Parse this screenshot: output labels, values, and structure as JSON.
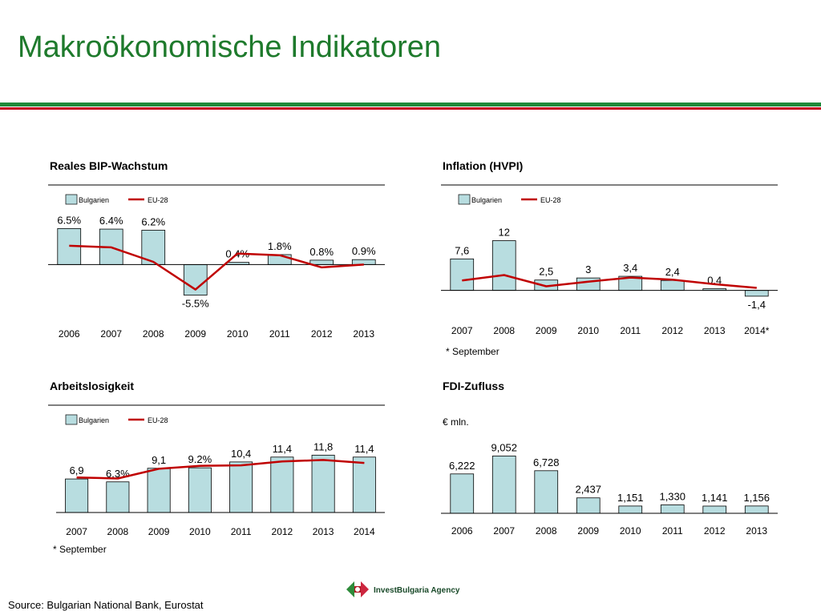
{
  "page": {
    "title": "Makroökonomische Indikatoren",
    "source": "Source: Bulgarian National Bank,  Eurostat",
    "logo_text": "InvestBulgaria Agency"
  },
  "colors": {
    "title": "#1e7a2c",
    "bar_fill": "#b8dde0",
    "line": "#c00000",
    "stripe_green": "#1e8a3a",
    "stripe_red": "#c4001d"
  },
  "chart_data": [
    {
      "type": "bar",
      "title": "Reales BIP-Wachstum",
      "categories": [
        "2006",
        "2007",
        "2008",
        "2009",
        "2010",
        "2011",
        "2012",
        "2013"
      ],
      "series": [
        {
          "name": "Bulgarien",
          "type": "bar",
          "values": [
            6.5,
            6.4,
            6.2,
            -5.5,
            0.4,
            1.8,
            0.8,
            0.9
          ]
        },
        {
          "name": "EU-28",
          "type": "line",
          "values": [
            3.4,
            3.1,
            0.5,
            -4.5,
            2.0,
            1.7,
            -0.5,
            0.0
          ]
        }
      ],
      "value_labels": [
        "6.5%",
        "6.4%",
        "6.2%",
        "-5.5%",
        "0.4%",
        "1.8%",
        "0.8%",
        "0.9%"
      ],
      "note": "",
      "unit_label": "",
      "ylim": [
        -6,
        8
      ],
      "legend": "top-left"
    },
    {
      "type": "bar",
      "title": "Inflation (HVPI)",
      "categories": [
        "2007",
        "2008",
        "2009",
        "2010",
        "2011",
        "2012",
        "2013",
        "2014*"
      ],
      "series": [
        {
          "name": "Bulgarien",
          "type": "bar",
          "values": [
            7.6,
            12,
            2.5,
            3,
            3.4,
            2.4,
            0.4,
            -1.4
          ]
        },
        {
          "name": "EU-28",
          "type": "line",
          "values": [
            2.4,
            3.7,
            1.0,
            2.1,
            3.1,
            2.6,
            1.5,
            0.6
          ]
        }
      ],
      "value_labels": [
        "7,6",
        "12",
        "2,5",
        "3",
        "3,4",
        "2,4",
        "0.4",
        "-1,4"
      ],
      "note": "* September",
      "unit_label": "",
      "ylim": [
        -2,
        15
      ],
      "legend": "top-left"
    },
    {
      "type": "bar",
      "title": "Arbeitslosigkeit",
      "categories": [
        "2007",
        "2008",
        "2009",
        "2010",
        "2011",
        "2012",
        "2013",
        "2014"
      ],
      "series": [
        {
          "name": "Bulgarien",
          "type": "bar",
          "values": [
            6.9,
            6.3,
            9.1,
            9.2,
            10.4,
            11.4,
            11.8,
            11.4
          ]
        },
        {
          "name": "EU-28",
          "type": "line",
          "values": [
            7.2,
            7.0,
            9.0,
            9.6,
            9.7,
            10.5,
            10.8,
            10.2
          ]
        }
      ],
      "value_labels": [
        "6,9",
        "6.3%",
        "9,1",
        "9.2%",
        "10,4",
        "11,4",
        "11,8",
        "11,4"
      ],
      "note": "* September",
      "unit_label": "",
      "ylim": [
        0,
        14
      ],
      "legend": "top-left"
    },
    {
      "type": "bar",
      "title": "FDI-Zufluss",
      "categories": [
        "2006",
        "2007",
        "2008",
        "2009",
        "2010",
        "2011",
        "2012",
        "2013"
      ],
      "series": [
        {
          "name": "",
          "type": "bar",
          "values": [
            6222,
            9052,
            6728,
            2437,
            1151,
            1330,
            1141,
            1156
          ]
        }
      ],
      "value_labels": [
        "6,222",
        "9,052",
        "6,728",
        "2,437",
        "1,151",
        "1,330",
        "1,141",
        "1,156"
      ],
      "note": "",
      "unit_label": "€ mln.",
      "ylim": [
        0,
        10500
      ],
      "legend": ""
    }
  ]
}
